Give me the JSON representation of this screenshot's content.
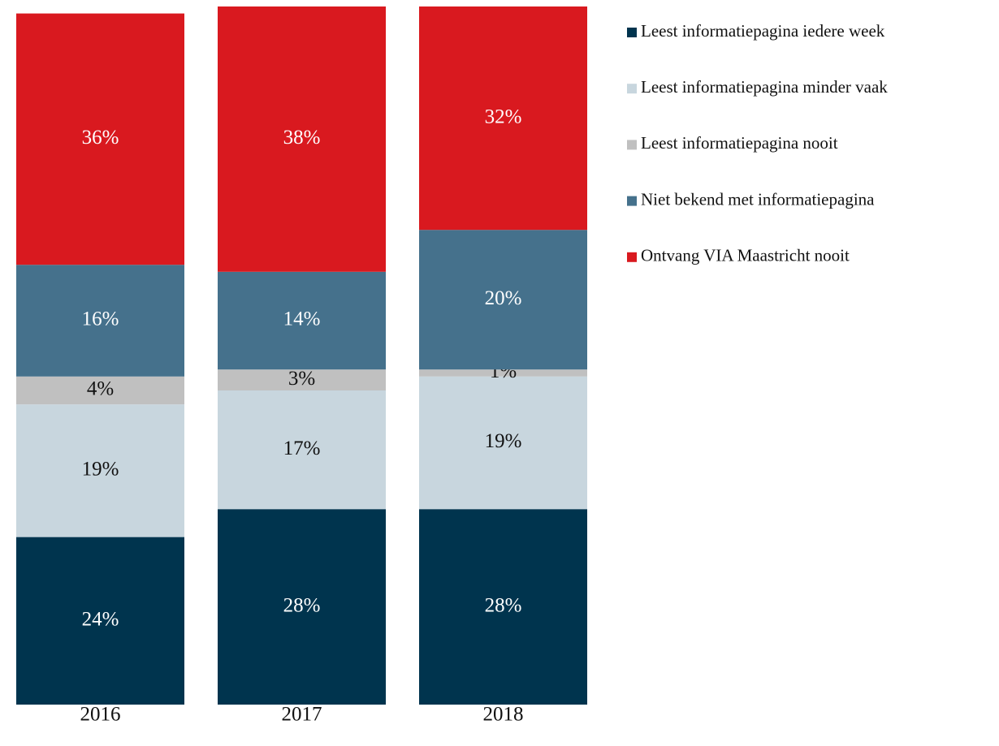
{
  "chart_data": {
    "type": "stacked_bar",
    "categories": [
      "2016",
      "2017",
      "2018"
    ],
    "series": [
      {
        "name": "Leest informatiepagina iedere week",
        "color": "#00344e",
        "values": [
          24,
          28,
          28
        ],
        "value_labels": [
          "24%",
          "28%",
          "28%"
        ]
      },
      {
        "name": "Leest informatiepagina minder vaak",
        "color": "#c8d6de",
        "values": [
          19,
          17,
          19
        ],
        "value_labels": [
          "19%",
          "17%",
          "19%"
        ]
      },
      {
        "name": "Leest informatiepagina nooit",
        "color": "#c0c0c0",
        "values": [
          4,
          3,
          1
        ],
        "value_labels": [
          "4%",
          "3%",
          "1%"
        ]
      },
      {
        "name": "Niet bekend met informatiepagina",
        "color": "#45718c",
        "values": [
          16,
          14,
          20
        ],
        "value_labels": [
          "16%",
          "14%",
          "20%"
        ]
      },
      {
        "name": "Ontvang VIA Maastricht nooit",
        "color": "#d9191f",
        "values": [
          36,
          38,
          32
        ],
        "value_labels": [
          "36%",
          "38%",
          "32%"
        ]
      }
    ],
    "ylim": [
      0,
      100
    ],
    "legend": "right"
  }
}
